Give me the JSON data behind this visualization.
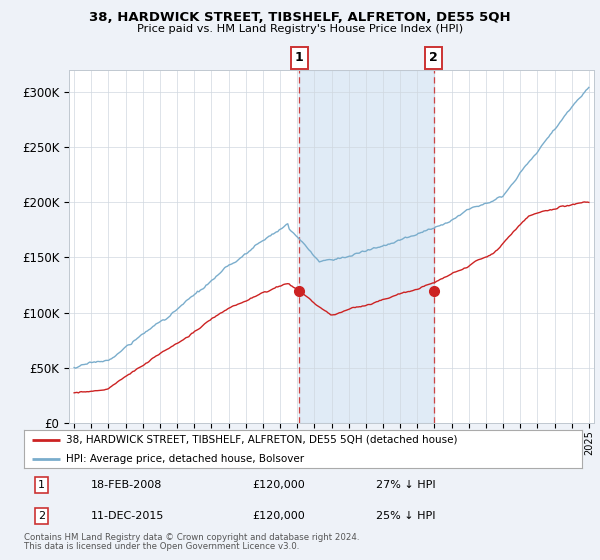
{
  "title": "38, HARDWICK STREET, TIBSHELF, ALFRETON, DE55 5QH",
  "subtitle": "Price paid vs. HM Land Registry's House Price Index (HPI)",
  "red_label": "38, HARDWICK STREET, TIBSHELF, ALFRETON, DE55 5QH (detached house)",
  "blue_label": "HPI: Average price, detached house, Bolsover",
  "transaction1": {
    "num": "1",
    "date": "18-FEB-2008",
    "price": "£120,000",
    "change": "27% ↓ HPI"
  },
  "transaction2": {
    "num": "2",
    "date": "11-DEC-2015",
    "price": "£120,000",
    "change": "25% ↓ HPI"
  },
  "footnote1": "Contains HM Land Registry data © Crown copyright and database right 2024.",
  "footnote2": "This data is licensed under the Open Government Licence v3.0.",
  "year_start": 1995,
  "year_end": 2025,
  "ylim": [
    0,
    320000
  ],
  "yticks": [
    0,
    50000,
    100000,
    150000,
    200000,
    250000,
    300000
  ],
  "ytick_labels": [
    "£0",
    "£50K",
    "£100K",
    "£150K",
    "£200K",
    "£250K",
    "£300K"
  ],
  "marker1_year": 2008.13,
  "marker2_year": 2015.95,
  "marker1_price": 120000,
  "marker2_price": 120000,
  "bg_color": "#eef2f8",
  "plot_bg": "#ffffff",
  "red_color": "#cc2222",
  "blue_color": "#7aadcc"
}
